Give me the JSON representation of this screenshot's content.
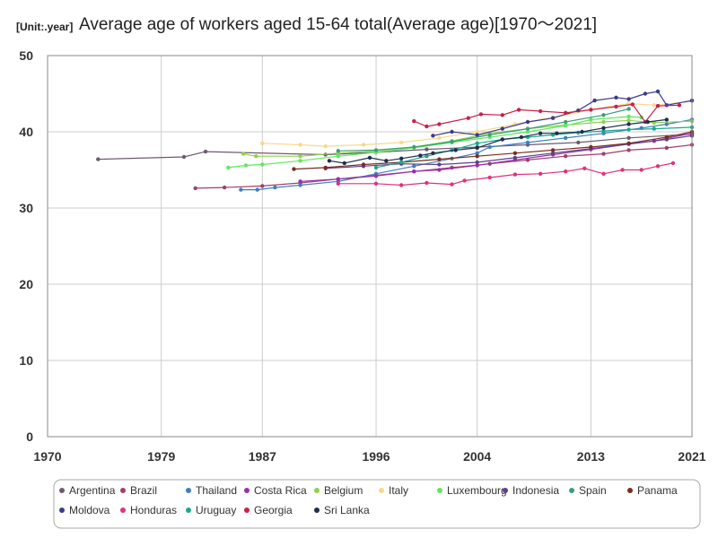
{
  "chart_data": {
    "type": "line",
    "title": "Average age of workers aged 15-64 total(Average age)[1970～2021]",
    "unit_label": "[Unit:.year]",
    "xlim": [
      1970,
      2021
    ],
    "ylim": [
      0,
      50
    ],
    "x_ticks": [
      1970,
      1979,
      1987,
      1996,
      2004,
      2013,
      2021
    ],
    "y_ticks": [
      0,
      10,
      20,
      30,
      40,
      50
    ],
    "grid": true,
    "legend_position": "bottom",
    "series": [
      {
        "name": "Argentina",
        "color": "#6e5a6e",
        "points": [
          [
            1974,
            36.4
          ],
          [
            1980.8,
            36.7
          ],
          [
            1982.5,
            37.4
          ],
          [
            1992,
            37.0
          ],
          [
            1996,
            37.3
          ],
          [
            2000,
            37.7
          ],
          [
            2004,
            38.0
          ],
          [
            2008,
            38.3
          ],
          [
            2012,
            38.6
          ],
          [
            2016,
            39.2
          ],
          [
            2021,
            39.7
          ]
        ]
      },
      {
        "name": "Brazil",
        "color": "#a0406a",
        "points": [
          [
            1981.7,
            32.6
          ],
          [
            1984,
            32.7
          ],
          [
            1987,
            32.9
          ],
          [
            1990,
            33.3
          ],
          [
            1993,
            33.8
          ],
          [
            1996,
            34.3
          ],
          [
            1999,
            34.8
          ],
          [
            2002,
            35.3
          ],
          [
            2005,
            35.8
          ],
          [
            2008,
            36.3
          ],
          [
            2011,
            36.8
          ],
          [
            2014,
            37.1
          ],
          [
            2016,
            37.6
          ],
          [
            2019,
            37.9
          ],
          [
            2021,
            38.3
          ]
        ]
      },
      {
        "name": "Thailand",
        "color": "#3f7fbf",
        "points": [
          [
            1985.3,
            32.4
          ],
          [
            1986.6,
            32.4
          ],
          [
            1988,
            32.7
          ],
          [
            1990,
            33.0
          ],
          [
            1993,
            33.5
          ],
          [
            1996,
            34.5
          ],
          [
            1999,
            35.5
          ],
          [
            2002,
            36.5
          ],
          [
            2004,
            37.2
          ],
          [
            2005,
            38.0
          ],
          [
            2008,
            38.6
          ],
          [
            2011,
            39.2
          ],
          [
            2014,
            39.8
          ],
          [
            2017,
            40.5
          ],
          [
            2019,
            41.0
          ],
          [
            2021,
            41.6
          ]
        ]
      },
      {
        "name": "Costa Rica",
        "color": "#9b2fae",
        "points": [
          [
            1990,
            33.5
          ],
          [
            1993,
            33.8
          ],
          [
            1996,
            34.2
          ],
          [
            1999,
            34.8
          ],
          [
            2001,
            35.0
          ],
          [
            2004,
            35.6
          ],
          [
            2007,
            36.3
          ],
          [
            2010,
            37.0
          ],
          [
            2013,
            37.7
          ],
          [
            2016,
            38.4
          ],
          [
            2018,
            38.8
          ],
          [
            2021,
            39.8
          ]
        ]
      },
      {
        "name": "Belgium",
        "color": "#8fd14f",
        "points": [
          [
            1985.5,
            37.1
          ],
          [
            1986.5,
            36.8
          ],
          [
            1990,
            36.8
          ],
          [
            1993,
            37.2
          ],
          [
            1996,
            37.5
          ],
          [
            1999,
            38.0
          ],
          [
            2002,
            38.8
          ],
          [
            2005,
            39.8
          ],
          [
            2008,
            40.4
          ],
          [
            2011,
            40.9
          ],
          [
            2014,
            41.3
          ],
          [
            2016,
            41.5
          ],
          [
            2018,
            41.2
          ],
          [
            2021,
            41.4
          ]
        ]
      },
      {
        "name": "Italy",
        "color": "#f7d98b",
        "points": [
          [
            1987,
            38.5
          ],
          [
            1990,
            38.3
          ],
          [
            1992,
            38.1
          ],
          [
            1995,
            38.3
          ],
          [
            1998,
            38.6
          ],
          [
            2001,
            39.2
          ],
          [
            2004,
            40.0
          ],
          [
            2007,
            41.0
          ],
          [
            2010,
            41.9
          ],
          [
            2013,
            42.9
          ],
          [
            2016,
            43.7
          ],
          [
            2018,
            43.5
          ],
          [
            2021,
            44.0
          ]
        ]
      },
      {
        "name": "Luxembourg",
        "color": "#5ee85e",
        "points": [
          [
            1984.3,
            35.3
          ],
          [
            1985.7,
            35.6
          ],
          [
            1987,
            35.7
          ],
          [
            1990,
            36.2
          ],
          [
            1993,
            36.8
          ],
          [
            1996,
            37.3
          ],
          [
            1999,
            37.9
          ],
          [
            2002,
            38.6
          ],
          [
            2005,
            39.3
          ],
          [
            2008,
            40.0
          ],
          [
            2011,
            40.8
          ],
          [
            2013,
            41.6
          ],
          [
            2016,
            42.0
          ],
          [
            2017,
            41.9
          ]
        ]
      },
      {
        "name": "Indonesia",
        "color": "#5e3f8e",
        "points": [
          [
            1992,
            35.2
          ],
          [
            1995,
            35.5
          ],
          [
            1998,
            35.8
          ],
          [
            2001,
            35.7
          ],
          [
            2004,
            36.0
          ],
          [
            2007,
            36.6
          ],
          [
            2010,
            37.2
          ],
          [
            2013,
            37.8
          ],
          [
            2016,
            38.4
          ],
          [
            2019,
            39.0
          ],
          [
            2021,
            39.5
          ]
        ]
      },
      {
        "name": "Spain",
        "color": "#3a9e7e",
        "points": [
          [
            1993,
            37.5
          ],
          [
            1996,
            37.6
          ],
          [
            1999,
            38.0
          ],
          [
            2002,
            38.7
          ],
          [
            2005,
            39.6
          ],
          [
            2008,
            40.4
          ],
          [
            2011,
            41.3
          ],
          [
            2014,
            42.2
          ],
          [
            2016,
            43.0
          ]
        ]
      },
      {
        "name": "Panama",
        "color": "#7a2e1e",
        "points": [
          [
            1989.5,
            35.1
          ],
          [
            1992,
            35.3
          ],
          [
            1995,
            35.7
          ],
          [
            1998,
            36.0
          ],
          [
            2001,
            36.4
          ],
          [
            2004,
            36.8
          ],
          [
            2007,
            37.2
          ],
          [
            2010,
            37.6
          ],
          [
            2013,
            38.0
          ],
          [
            2016,
            38.5
          ],
          [
            2019,
            39.3
          ],
          [
            2021,
            40.0
          ]
        ]
      },
      {
        "name": "Moldova",
        "color": "#3a3a8e",
        "points": [
          [
            2000.5,
            39.5
          ],
          [
            2002,
            40.0
          ],
          [
            2004,
            39.6
          ],
          [
            2006,
            40.4
          ],
          [
            2008,
            41.3
          ],
          [
            2010,
            41.8
          ],
          [
            2012,
            42.8
          ],
          [
            2013.3,
            44.1
          ],
          [
            2015,
            44.5
          ],
          [
            2016,
            44.3
          ],
          [
            2017.3,
            45.0
          ],
          [
            2018.3,
            45.3
          ],
          [
            2019,
            43.5
          ],
          [
            2021,
            44.1
          ]
        ]
      },
      {
        "name": "Honduras",
        "color": "#e0307e",
        "points": [
          [
            1993,
            33.2
          ],
          [
            1996,
            33.2
          ],
          [
            1998,
            33.0
          ],
          [
            2000,
            33.3
          ],
          [
            2002,
            33.1
          ],
          [
            2003,
            33.6
          ],
          [
            2005,
            34.0
          ],
          [
            2007,
            34.4
          ],
          [
            2009,
            34.5
          ],
          [
            2011,
            34.8
          ],
          [
            2012.5,
            35.2
          ],
          [
            2014,
            34.5
          ],
          [
            2015.5,
            35.0
          ],
          [
            2017,
            35.0
          ],
          [
            2018.3,
            35.5
          ],
          [
            2019.5,
            35.9
          ]
        ]
      },
      {
        "name": "Uruguay",
        "color": "#1aa88e",
        "points": [
          [
            1996,
            35.3
          ],
          [
            1998,
            36.0
          ],
          [
            2000,
            36.8
          ],
          [
            2002,
            37.6
          ],
          [
            2004,
            38.5
          ],
          [
            2006,
            39.0
          ],
          [
            2008,
            39.3
          ],
          [
            2010,
            39.6
          ],
          [
            2012,
            39.9
          ],
          [
            2014,
            40.1
          ],
          [
            2016,
            40.3
          ],
          [
            2018,
            40.4
          ],
          [
            2021,
            40.6
          ]
        ]
      },
      {
        "name": "Georgia",
        "color": "#c8204a",
        "points": [
          [
            1999,
            41.4
          ],
          [
            2000,
            40.7
          ],
          [
            2001,
            41.0
          ],
          [
            2003.3,
            41.8
          ],
          [
            2004.3,
            42.3
          ],
          [
            2006,
            42.2
          ],
          [
            2007.3,
            42.9
          ],
          [
            2009,
            42.7
          ],
          [
            2011,
            42.5
          ],
          [
            2013,
            42.9
          ],
          [
            2015,
            43.3
          ],
          [
            2016.3,
            43.6
          ],
          [
            2017.3,
            41.3
          ],
          [
            2018.3,
            43.4
          ],
          [
            2020,
            43.5
          ]
        ]
      },
      {
        "name": "Sri Lanka",
        "color": "#1e2e4e",
        "points": [
          [
            1992.3,
            36.2
          ],
          [
            1993.5,
            35.9
          ],
          [
            1995.5,
            36.6
          ],
          [
            1996.8,
            36.2
          ],
          [
            1998,
            36.5
          ],
          [
            1999.5,
            36.9
          ],
          [
            2000.5,
            37.2
          ],
          [
            2002.3,
            37.6
          ],
          [
            2004,
            37.9
          ],
          [
            2006,
            39.0
          ],
          [
            2007.5,
            39.3
          ],
          [
            2009,
            39.8
          ],
          [
            2010.3,
            39.8
          ],
          [
            2012.3,
            40.0
          ],
          [
            2014,
            40.5
          ],
          [
            2016,
            41.0
          ],
          [
            2017.5,
            41.3
          ],
          [
            2019,
            41.6
          ]
        ]
      }
    ]
  }
}
